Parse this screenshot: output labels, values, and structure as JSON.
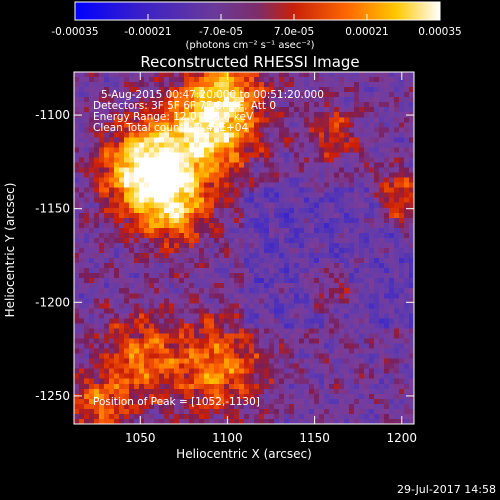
{
  "colorbar": {
    "tick_labels": [
      "-0.00035",
      "-0.00021",
      "-7.0e-05",
      "7.0e-05",
      "0.00021",
      "0.00035"
    ],
    "units_label": "(photons cm⁻² s⁻¹ asec⁻²)",
    "range": [
      -0.00035,
      0.00035
    ],
    "colors": [
      "#0000ff",
      "#4b1eb0",
      "#7a3a90",
      "#c21e10",
      "#ff5a00",
      "#ffc000",
      "#ffffff"
    ]
  },
  "chart_data": {
    "type": "heatmap",
    "title": "Reconstructed RHESSI Image",
    "xlabel": "Heliocentric X (arcsec)",
    "ylabel": "Heliocentric Y (arcsec)",
    "xlim": [
      1012,
      1207
    ],
    "ylim": [
      -1265,
      -1077
    ],
    "x_ticks": [
      1050,
      1100,
      1150,
      1200
    ],
    "y_ticks": [
      -1100,
      -1150,
      -1200,
      -1250
    ],
    "annotations": [
      "5-Aug-2015 00:47:20.000 to 00:51:20.000",
      "Detectors: 3F 5F 6F 7F 8F 9F, Att 0",
      "Energy Range: 12.0 - 25.0 keV",
      "Clean      Total counts: 2.43E+04"
    ],
    "peak_label": "Position of Peak = [1052,-1130]",
    "peak": [
      1052,
      -1130
    ],
    "sources": [
      {
        "x": 1052,
        "y": -1130,
        "intensity": 1.0,
        "sigma": 16
      },
      {
        "x": 1085,
        "y": -1112,
        "intensity": 0.75,
        "sigma": 18
      },
      {
        "x": 1100,
        "y": -1090,
        "intensity": 0.6,
        "sigma": 16
      },
      {
        "x": 1070,
        "y": -1150,
        "intensity": 0.6,
        "sigma": 14
      },
      {
        "x": 1095,
        "y": -1235,
        "intensity": 0.55,
        "sigma": 18
      },
      {
        "x": 1050,
        "y": -1230,
        "intensity": 0.5,
        "sigma": 16
      },
      {
        "x": 1025,
        "y": -1255,
        "intensity": 0.45,
        "sigma": 12
      },
      {
        "x": 1200,
        "y": -1145,
        "intensity": 0.55,
        "sigma": 10
      },
      {
        "x": 1160,
        "y": -1110,
        "intensity": 0.35,
        "sigma": 10
      },
      {
        "x": 1160,
        "y": -1195,
        "intensity": 0.3,
        "sigma": 10
      }
    ]
  },
  "timestamp": "29-Jul-2017 14:58"
}
